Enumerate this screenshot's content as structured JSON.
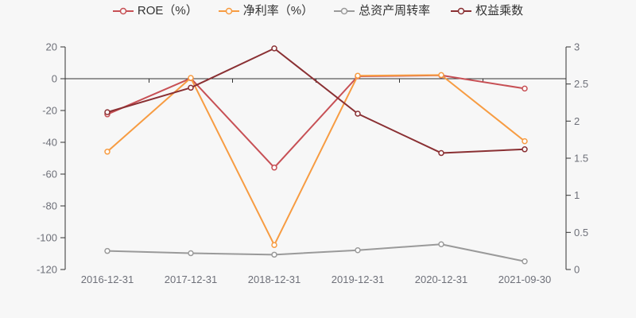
{
  "colors": {
    "background": "#f7f7f7",
    "axis_line": "#333333",
    "tick_label": "#6e7079",
    "legend_text": "#333333"
  },
  "chart_data": {
    "type": "line",
    "title": "",
    "legend_position": "top",
    "grid": false,
    "categories": [
      "2016-12-31",
      "2017-12-31",
      "2018-12-31",
      "2019-12-31",
      "2020-12-31",
      "2021-09-30"
    ],
    "series": [
      {
        "key": "roe",
        "name": "ROE（%）",
        "axis": "left",
        "color": "#c75055",
        "values": [
          -22.4,
          0.3,
          -55.9,
          1.5,
          2.1,
          -6.2
        ]
      },
      {
        "key": "net-profit-margin",
        "name": "净利率（%）",
        "axis": "left",
        "color": "#f79c42",
        "values": [
          -45.9,
          0.5,
          -104.6,
          1.9,
          2.3,
          -39.3
        ]
      },
      {
        "key": "asset-turnover",
        "name": "总资产周转率",
        "axis": "right",
        "color": "#9a9a9a",
        "values": [
          0.25,
          0.22,
          0.2,
          0.26,
          0.34,
          0.11
        ]
      },
      {
        "key": "equity-multiplier",
        "name": "权益乘数",
        "axis": "right",
        "color": "#8a3033",
        "values": [
          2.12,
          2.45,
          2.98,
          2.1,
          1.57,
          1.62
        ]
      }
    ],
    "left_axis": {
      "ticks": [
        "20",
        "0",
        "-20",
        "-40",
        "-60",
        "-80",
        "-100",
        "-120"
      ],
      "range": [
        -120,
        20
      ]
    },
    "right_axis": {
      "ticks": [
        "3",
        "2.5",
        "2",
        "1.5",
        "1",
        "0.5",
        "0"
      ],
      "range": [
        0,
        3
      ]
    }
  }
}
